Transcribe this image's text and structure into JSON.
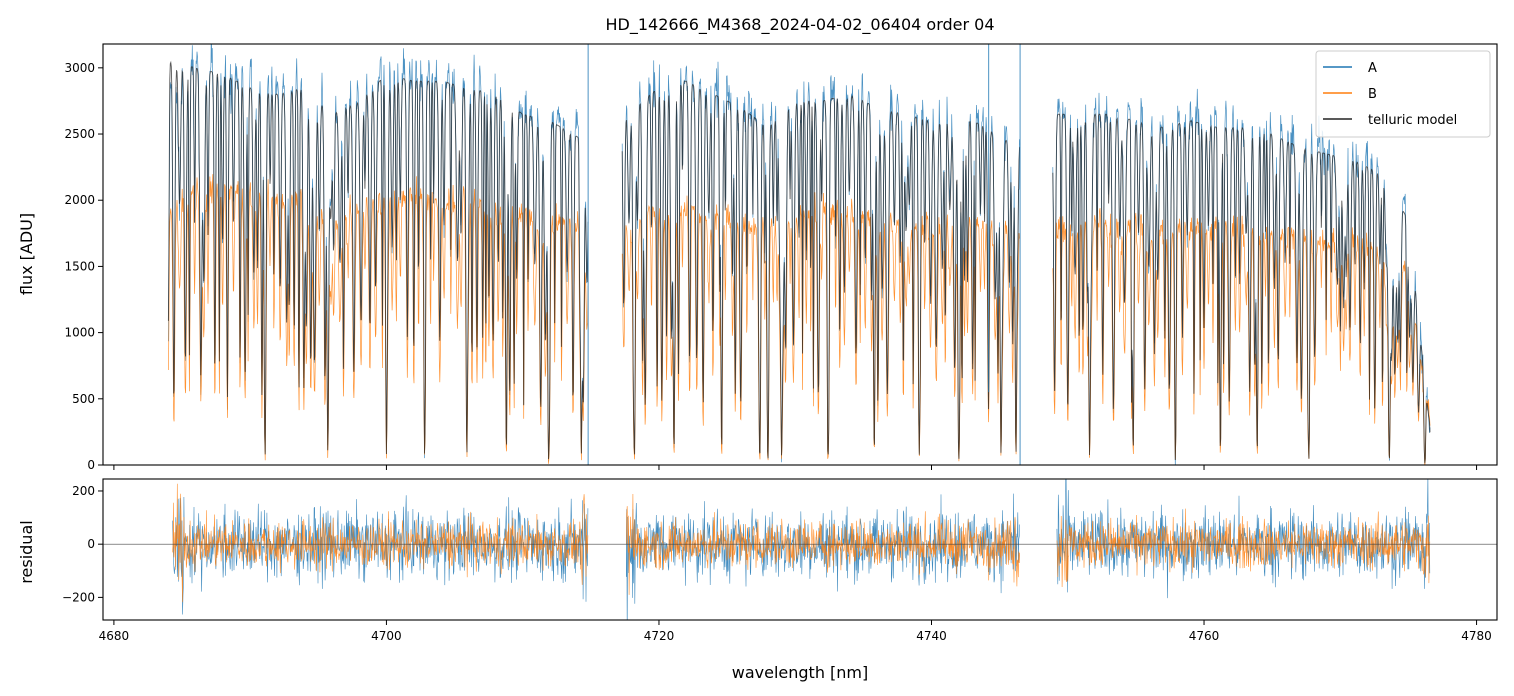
{
  "title": "HD_142666_M4368_2024-04-02_06404  order 04",
  "chart_data": [
    {
      "type": "line",
      "panel": "flux",
      "ylabel": "flux [ADU]",
      "xlabel": "",
      "xlim": [
        4679.2,
        4781.5
      ],
      "ylim": [
        0,
        3180
      ],
      "yticks": [
        0,
        500,
        1000,
        1500,
        2000,
        2500,
        3000
      ],
      "xticks": [
        4680,
        4700,
        4720,
        4740,
        4760,
        4780
      ],
      "grid": false,
      "legend_position": "top-right",
      "legend": [
        "A",
        "B",
        "telluric model"
      ],
      "segments": [
        [
          4684.0,
          4714.8
        ],
        [
          4717.3,
          4746.5
        ],
        [
          4748.9,
          4776.6
        ]
      ],
      "series": [
        {
          "name": "A",
          "color": "#1f77b4",
          "x": [
            4684.2,
            4686,
            4688,
            4690,
            4692,
            4694,
            4696,
            4698,
            4700,
            4702,
            4704,
            4706,
            4708,
            4710,
            4712,
            4714.5,
            4717.5,
            4720,
            4722,
            4724,
            4726,
            4728,
            4730,
            4732,
            4734,
            4736,
            4738,
            4740,
            4742,
            4744,
            4746.3,
            4749.2,
            4751,
            4753,
            4755,
            4757,
            4759,
            4761,
            4763,
            4765,
            4767,
            4769,
            4771,
            4773,
            4775,
            4776.5
          ],
          "y": [
            2900,
            3050,
            3000,
            2900,
            2850,
            2900,
            2700,
            2800,
            3000,
            2950,
            2950,
            2900,
            2850,
            2700,
            2650,
            2500,
            2700,
            2900,
            2950,
            2850,
            2750,
            2600,
            2800,
            2800,
            2850,
            2750,
            2700,
            2650,
            2700,
            2600,
            2450,
            2700,
            2700,
            2700,
            2650,
            2600,
            2650,
            2600,
            2600,
            2550,
            2450,
            2400,
            2350,
            2250,
            1900,
            400
          ]
        },
        {
          "name": "B",
          "color": "#ff7f0e",
          "x": [
            4684.2,
            4686,
            4688,
            4690,
            4692,
            4694,
            4696,
            4698,
            4700,
            4702,
            4704,
            4706,
            4708,
            4710,
            4712,
            4714.5,
            4717.5,
            4720,
            4722,
            4724,
            4726,
            4728,
            4730,
            4732,
            4734,
            4736,
            4738,
            4740,
            4742,
            4744,
            4746.3,
            4749.2,
            4751,
            4753,
            4755,
            4757,
            4759,
            4761,
            4763,
            4765,
            4767,
            4769,
            4771,
            4773,
            4775,
            4776.5
          ],
          "y": [
            1950,
            2100,
            2100,
            2050,
            2000,
            2000,
            1800,
            1950,
            2050,
            2050,
            2000,
            2000,
            1950,
            1900,
            1850,
            1800,
            1850,
            1950,
            1950,
            1900,
            1850,
            1800,
            1900,
            1950,
            1950,
            1900,
            1850,
            1850,
            1850,
            1800,
            1750,
            1800,
            1850,
            1850,
            1850,
            1800,
            1800,
            1800,
            1800,
            1750,
            1750,
            1700,
            1700,
            1600,
            1450,
            400
          ]
        },
        {
          "name": "telluric model",
          "color": "#222222",
          "x": [
            4684.2,
            4686,
            4688,
            4690,
            4692,
            4694,
            4696,
            4698,
            4700,
            4702,
            4704,
            4706,
            4708,
            4710,
            4712,
            4714.5,
            4717.5,
            4720,
            4722,
            4724,
            4726,
            4728,
            4730,
            4732,
            4734,
            4736,
            4738,
            4740,
            4742,
            4744,
            4746.3,
            4749.2,
            4751,
            4753,
            4755,
            4757,
            4759,
            4761,
            4763,
            4765,
            4767,
            4769,
            4771,
            4773,
            4775,
            4776.5
          ],
          "y": [
            3050,
            3000,
            2950,
            2850,
            2800,
            2850,
            2650,
            2750,
            2950,
            2900,
            2900,
            2850,
            2800,
            2650,
            2600,
            2450,
            2650,
            2850,
            2900,
            2800,
            2700,
            2550,
            2750,
            2750,
            2800,
            2700,
            2650,
            2600,
            2650,
            2550,
            2400,
            2650,
            2650,
            2650,
            2600,
            2550,
            2600,
            2550,
            2550,
            2500,
            2400,
            2350,
            2300,
            2200,
            1850,
            350
          ]
        }
      ]
    },
    {
      "type": "line",
      "panel": "residual",
      "ylabel": "residual",
      "xlabel": "wavelength [nm]",
      "xlim": [
        4679.2,
        4781.5
      ],
      "ylim": [
        -285,
        245
      ],
      "yticks": [
        -200,
        0,
        200
      ],
      "xticks": [
        4680,
        4700,
        4720,
        4740,
        4760,
        4780
      ],
      "grid": false,
      "reference_line": 0,
      "segments": [
        [
          4684.0,
          4714.8
        ],
        [
          4717.3,
          4746.5
        ],
        [
          4748.9,
          4776.6
        ]
      ],
      "series": [
        {
          "name": "A",
          "color": "#1f77b4",
          "noise_amplitude": 100
        },
        {
          "name": "B",
          "color": "#ff7f0e",
          "noise_amplitude": 70
        }
      ]
    }
  ],
  "telluric_lines_nm": [
    4691.1,
    4695.7,
    4700.0,
    4702.8,
    4705.9,
    4708.8,
    4711.9,
    4714.3,
    4718.2,
    4721.1,
    4724.6,
    4727.4,
    4728.0,
    4729.0,
    4732.4,
    4735.8,
    4739.1,
    4742.0,
    4745.1,
    4746.2,
    4751.6,
    4754.8,
    4757.9,
    4761.2,
    4763.9,
    4767.7,
    4773.6,
    4776.2
  ]
}
